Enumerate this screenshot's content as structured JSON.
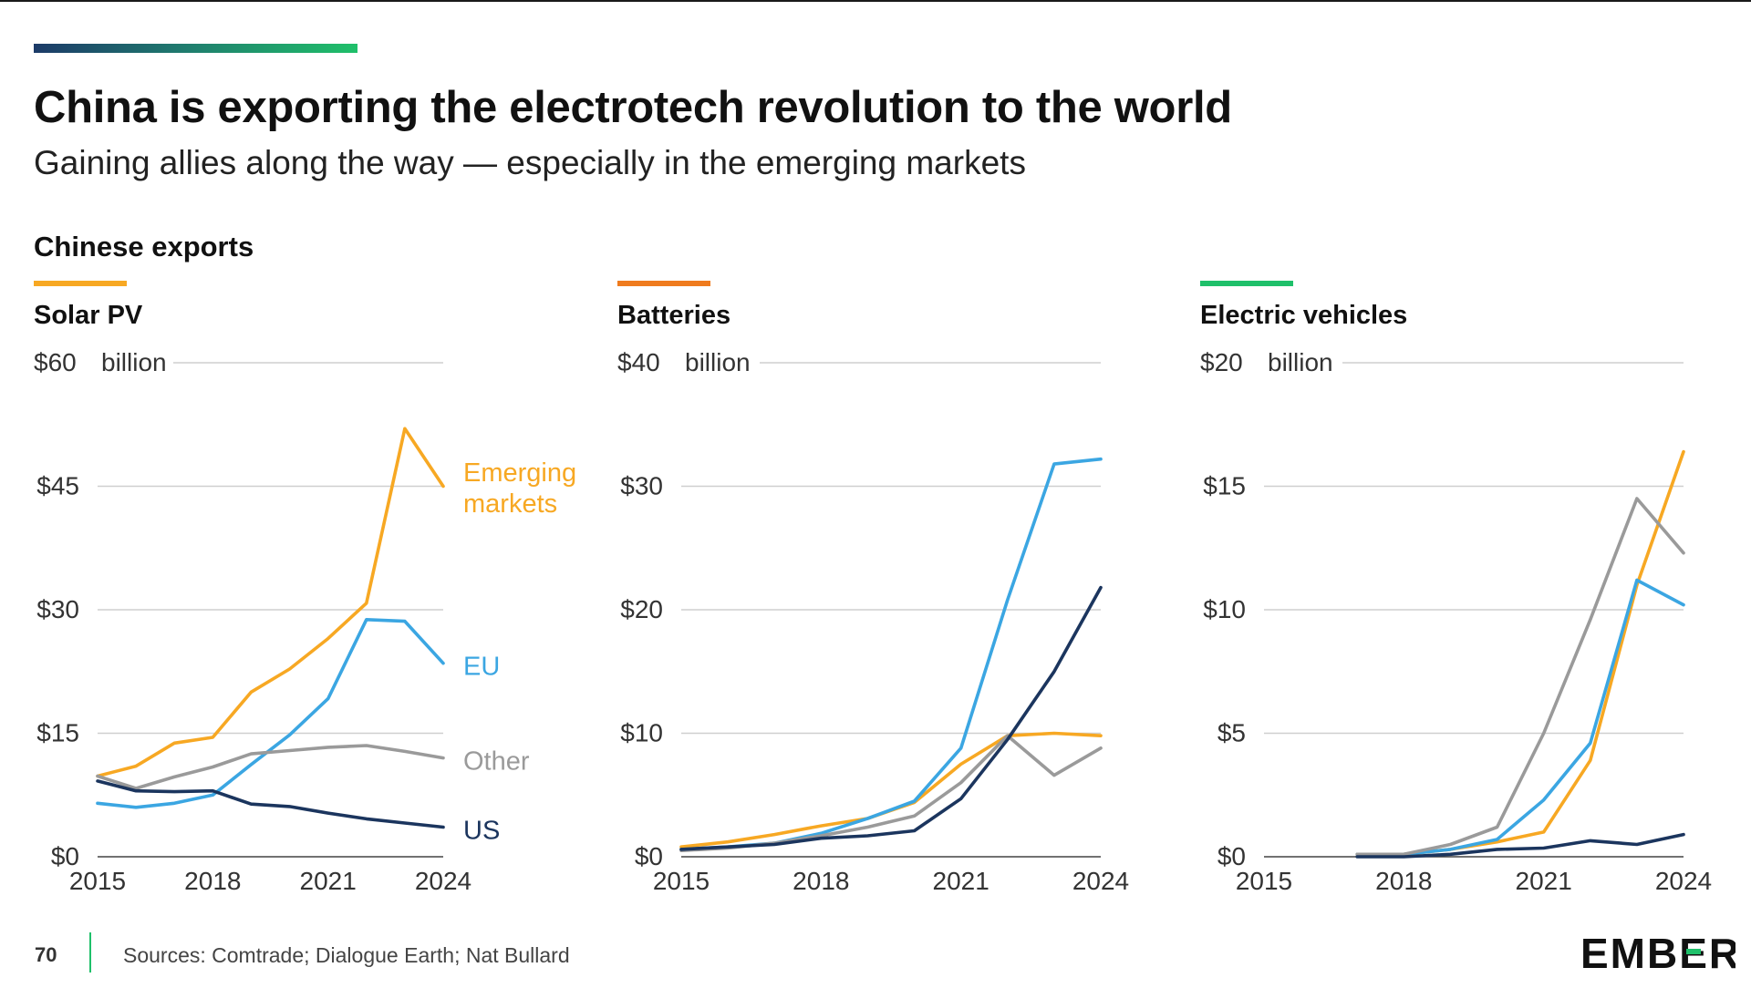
{
  "header": {
    "title": "China is exporting the electrotech revolution to the world",
    "subtitle": "Gaining allies along the way — especially in the emerging markets",
    "section_label": "Chinese exports"
  },
  "footer": {
    "page_number": "70",
    "sources": "Sources: Comtrade; Dialogue Earth; Nat Bullard",
    "brand": "EMBER"
  },
  "colors": {
    "emerging": "#f7a823",
    "eu": "#3ba6e2",
    "other": "#9a9a9a",
    "us": "#1b355e",
    "gridline": "#cfcfcf",
    "solar_accent": "#f7a823",
    "batteries_accent": "#ef7b1e",
    "ev_accent": "#1fc06a"
  },
  "chart_data": [
    {
      "type": "line",
      "title": "Solar PV",
      "accent_color": "#f7a823",
      "unit_label": "billion",
      "ylim": [
        0,
        60
      ],
      "yticks": [
        0,
        15,
        30,
        45,
        60
      ],
      "ytick_labels": [
        "$0",
        "$15",
        "$30",
        "$45",
        "$60"
      ],
      "xlim": [
        2015,
        2024
      ],
      "xticks": [
        2015,
        2018,
        2021,
        2024
      ],
      "xtick_labels": [
        "2015",
        "2018",
        "2021",
        "2024"
      ],
      "series": [
        {
          "name": "Emerging markets",
          "label_lines": [
            "Emerging",
            "markets"
          ],
          "color": "#f7a823",
          "x": [
            2015,
            2016,
            2017,
            2018,
            2019,
            2020,
            2021,
            2022,
            2023,
            2024
          ],
          "values": [
            9.8,
            11,
            13.8,
            14.5,
            20,
            22.8,
            26.5,
            30.8,
            52,
            45
          ]
        },
        {
          "name": "EU",
          "label_lines": [
            "EU"
          ],
          "color": "#3ba6e2",
          "x": [
            2015,
            2016,
            2017,
            2018,
            2019,
            2020,
            2021,
            2022,
            2023,
            2024
          ],
          "values": [
            6.5,
            6,
            6.5,
            7.5,
            11.2,
            14.8,
            19.2,
            28.8,
            28.6,
            23.5
          ]
        },
        {
          "name": "Other",
          "label_lines": [
            "Other"
          ],
          "color": "#9a9a9a",
          "x": [
            2015,
            2016,
            2017,
            2018,
            2019,
            2020,
            2021,
            2022,
            2023,
            2024
          ],
          "values": [
            9.8,
            8.3,
            9.7,
            10.9,
            12.5,
            12.9,
            13.3,
            13.5,
            12.8,
            12
          ]
        },
        {
          "name": "US",
          "label_lines": [
            "US"
          ],
          "color": "#1b355e",
          "x": [
            2015,
            2016,
            2017,
            2018,
            2019,
            2020,
            2021,
            2022,
            2023,
            2024
          ],
          "values": [
            9.2,
            8,
            7.9,
            8,
            6.4,
            6.1,
            5.3,
            4.6,
            4.1,
            3.6
          ]
        }
      ]
    },
    {
      "type": "line",
      "title": "Batteries",
      "accent_color": "#ef7b1e",
      "unit_label": "billion",
      "ylim": [
        0,
        40
      ],
      "yticks": [
        0,
        10,
        20,
        30,
        40
      ],
      "ytick_labels": [
        "$0",
        "$10",
        "$20",
        "$30",
        "$40"
      ],
      "xlim": [
        2015,
        2024
      ],
      "xticks": [
        2015,
        2018,
        2021,
        2024
      ],
      "xtick_labels": [
        "2015",
        "2018",
        "2021",
        "2024"
      ],
      "series": [
        {
          "name": "Emerging markets",
          "color": "#f7a823",
          "x": [
            2015,
            2016,
            2017,
            2018,
            2019,
            2020,
            2021,
            2022,
            2023,
            2024
          ],
          "values": [
            0.8,
            1.2,
            1.8,
            2.5,
            3.1,
            4.4,
            7.5,
            9.8,
            10.0,
            9.8
          ]
        },
        {
          "name": "EU",
          "color": "#3ba6e2",
          "x": [
            2015,
            2016,
            2017,
            2018,
            2019,
            2020,
            2021,
            2022,
            2023,
            2024
          ],
          "values": [
            0.6,
            0.8,
            1.1,
            1.9,
            3.1,
            4.5,
            8.8,
            20.8,
            31.8,
            32.2
          ]
        },
        {
          "name": "Other",
          "color": "#9a9a9a",
          "x": [
            2015,
            2016,
            2017,
            2018,
            2019,
            2020,
            2021,
            2022,
            2023,
            2024
          ],
          "values": [
            0.5,
            0.7,
            1.1,
            1.7,
            2.4,
            3.3,
            6.0,
            9.8,
            6.6,
            8.8
          ]
        },
        {
          "name": "US",
          "color": "#1b355e",
          "x": [
            2015,
            2016,
            2017,
            2018,
            2019,
            2020,
            2021,
            2022,
            2023,
            2024
          ],
          "values": [
            0.6,
            0.8,
            1.0,
            1.5,
            1.7,
            2.1,
            4.7,
            9.5,
            15.0,
            21.8
          ]
        }
      ]
    },
    {
      "type": "line",
      "title": "Electric vehicles",
      "accent_color": "#1fc06a",
      "unit_label": "billion",
      "ylim": [
        0,
        20
      ],
      "yticks": [
        0,
        5,
        10,
        15,
        20
      ],
      "ytick_labels": [
        "$0",
        "$5",
        "$10",
        "$15",
        "$20"
      ],
      "xlim": [
        2015,
        2024
      ],
      "xticks": [
        2015,
        2018,
        2021,
        2024
      ],
      "xtick_labels": [
        "2015",
        "2018",
        "2021",
        "2024"
      ],
      "series": [
        {
          "name": "Emerging markets",
          "color": "#f7a823",
          "x": [
            2017,
            2018,
            2019,
            2020,
            2021,
            2022,
            2023,
            2024
          ],
          "values": [
            0.1,
            0.1,
            0.3,
            0.6,
            1.0,
            3.9,
            11.0,
            16.4
          ]
        },
        {
          "name": "EU",
          "color": "#3ba6e2",
          "x": [
            2017,
            2018,
            2019,
            2020,
            2021,
            2022,
            2023,
            2024
          ],
          "values": [
            0.1,
            0.1,
            0.3,
            0.7,
            2.3,
            4.6,
            11.2,
            10.2
          ]
        },
        {
          "name": "Other",
          "color": "#9a9a9a",
          "x": [
            2017,
            2018,
            2019,
            2020,
            2021,
            2022,
            2023,
            2024
          ],
          "values": [
            0.1,
            0.1,
            0.5,
            1.2,
            5.0,
            9.6,
            14.5,
            12.3
          ]
        },
        {
          "name": "US",
          "color": "#1b355e",
          "x": [
            2017,
            2018,
            2019,
            2020,
            2021,
            2022,
            2023,
            2024
          ],
          "values": [
            0.0,
            0.0,
            0.1,
            0.3,
            0.35,
            0.65,
            0.5,
            0.9
          ]
        }
      ]
    }
  ]
}
